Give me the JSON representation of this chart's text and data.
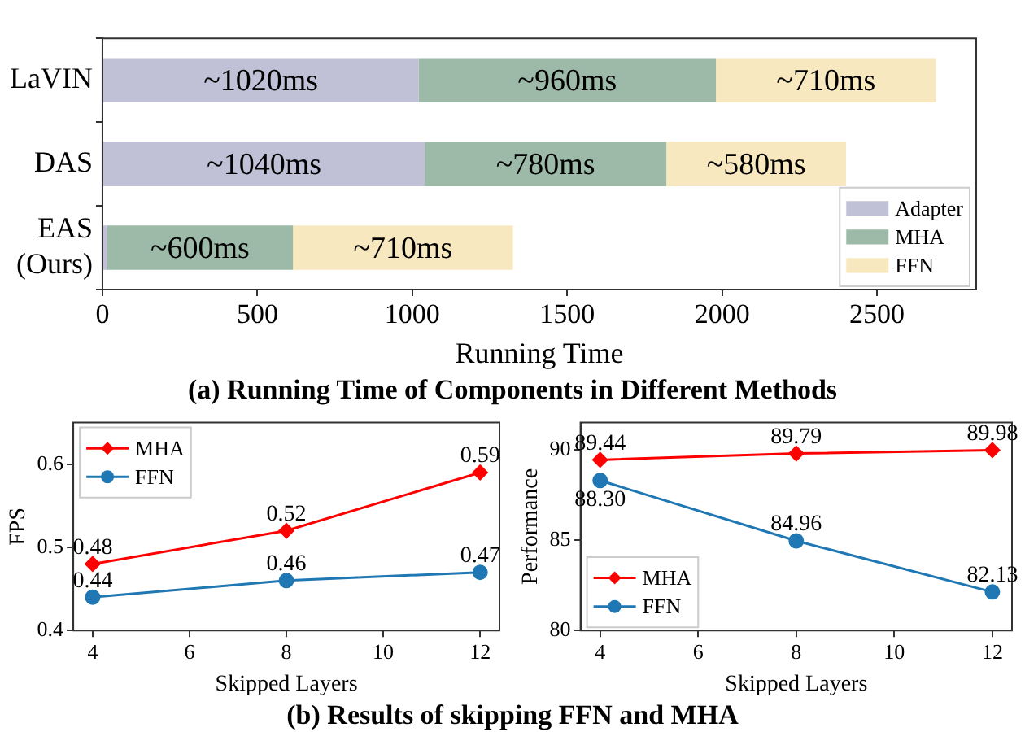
{
  "chart_data": [
    {
      "type": "bar",
      "orientation": "horizontal",
      "stacked": true,
      "title": "(a) Running Time of Components in Different Methods",
      "xlabel": "Running Time",
      "categories": [
        "LaVIN",
        "DAS",
        "EAS (Ours)"
      ],
      "series": [
        {
          "name": "Adapter",
          "color": "#c0c1d6",
          "values": [
            1020,
            1040,
            15
          ],
          "value_labels": [
            "~1020ms",
            "~1040ms",
            null
          ]
        },
        {
          "name": "MHA",
          "color": "#9dbaa8",
          "values": [
            960,
            780,
            600
          ],
          "value_labels": [
            "~960ms",
            "~780ms",
            "~600ms"
          ]
        },
        {
          "name": "FFN",
          "color": "#f8e8bf",
          "values": [
            710,
            580,
            710
          ],
          "value_labels": [
            "~710ms",
            "~580ms",
            "~710ms"
          ]
        }
      ],
      "xlim": [
        0,
        2820
      ],
      "xticks": [
        0,
        500,
        1000,
        1500,
        2000,
        2500
      ],
      "legend": "bottom right"
    },
    {
      "type": "line",
      "title": "(b) Results of skipping FFN and MHA",
      "xlabel": "Skipped Layers",
      "ylabel": "FPS",
      "x": [
        4,
        8,
        12
      ],
      "series": [
        {
          "name": "MHA",
          "color": "#ff0000",
          "marker": "diamond",
          "values": [
            0.48,
            0.52,
            0.59
          ],
          "value_labels": [
            "0.48",
            "0.52",
            "0.59"
          ]
        },
        {
          "name": "FFN",
          "color": "#1f77b4",
          "marker": "circle",
          "values": [
            0.44,
            0.46,
            0.47
          ],
          "value_labels": [
            "0.44",
            "0.46",
            "0.47"
          ]
        }
      ],
      "xlim": [
        3.6,
        12.4
      ],
      "xticks": [
        4,
        6,
        8,
        10,
        12
      ],
      "ylim": [
        0.4,
        0.65
      ],
      "yticks": [
        0.4,
        0.5,
        0.6
      ],
      "legend": "top left"
    },
    {
      "type": "line",
      "xlabel": "Skipped Layers",
      "ylabel": "Performance",
      "x": [
        4,
        8,
        12
      ],
      "series": [
        {
          "name": "MHA",
          "color": "#ff0000",
          "marker": "diamond",
          "values": [
            89.44,
            89.79,
            89.98
          ],
          "value_labels": [
            "89.44",
            "89.79",
            "89.98"
          ]
        },
        {
          "name": "FFN",
          "color": "#1f77b4",
          "marker": "circle",
          "values": [
            88.3,
            84.96,
            82.13
          ],
          "value_labels": [
            "88.30",
            "84.96",
            "82.13"
          ]
        }
      ],
      "xlim": [
        3.6,
        12.4
      ],
      "xticks": [
        4,
        6,
        8,
        10,
        12
      ],
      "ylim": [
        80,
        91.5
      ],
      "yticks": [
        80,
        85,
        90
      ],
      "legend": "bottom left"
    }
  ]
}
